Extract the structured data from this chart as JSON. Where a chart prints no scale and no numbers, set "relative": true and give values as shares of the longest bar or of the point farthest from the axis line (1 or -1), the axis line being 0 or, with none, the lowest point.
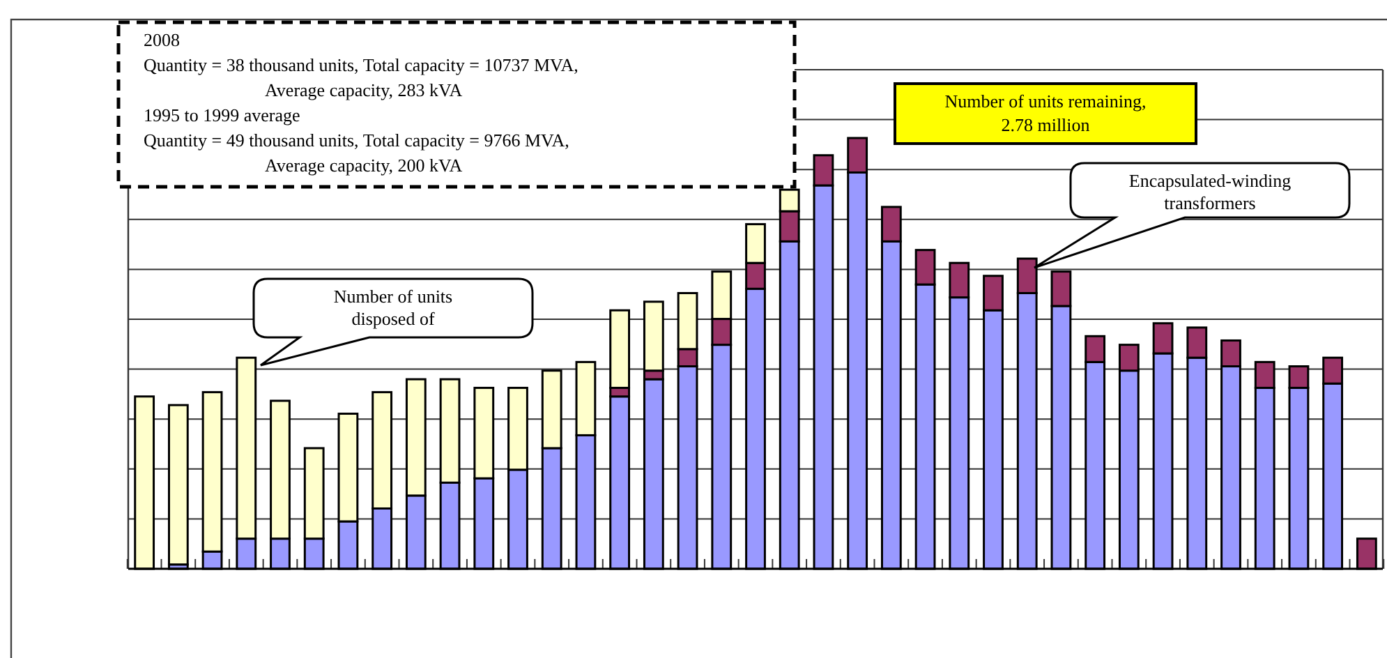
{
  "chart_data": {
    "type": "bar",
    "stacked": true,
    "relative": true,
    "grid": "y",
    "categories": [
      null,
      null,
      null,
      null,
      null,
      null,
      null,
      null,
      null,
      null,
      null,
      null,
      null,
      null,
      null,
      null,
      null,
      null,
      null,
      null,
      null,
      null,
      null,
      null,
      null,
      null,
      null,
      null,
      null,
      null,
      null,
      null,
      null,
      null,
      null,
      null,
      null
    ],
    "series": [
      {
        "color": "#9999ff",
        "values": [
          null,
          0.01,
          0.04,
          0.07,
          0.07,
          0.07,
          0.11,
          0.14,
          0.17,
          0.2,
          0.21,
          0.23,
          0.28,
          0.31,
          0.4,
          0.44,
          0.47,
          0.52,
          0.65,
          0.76,
          0.89,
          0.92,
          0.76,
          0.66,
          0.63,
          0.6,
          0.64,
          0.61,
          0.48,
          0.46,
          0.5,
          0.49,
          0.47,
          0.42,
          0.42,
          0.43,
          null
        ]
      },
      {
        "color": "#993366",
        "values": [
          null,
          null,
          null,
          null,
          null,
          null,
          null,
          null,
          null,
          null,
          null,
          null,
          null,
          null,
          0.02,
          0.02,
          0.04,
          0.06,
          0.06,
          0.07,
          0.07,
          0.08,
          0.08,
          0.08,
          0.08,
          0.08,
          0.08,
          0.08,
          0.06,
          0.06,
          0.07,
          0.07,
          0.06,
          0.06,
          0.05,
          0.06,
          0.07
        ]
      },
      {
        "color": "#ffffcc",
        "values": [
          0.4,
          0.37,
          0.37,
          0.42,
          0.32,
          0.21,
          0.25,
          0.27,
          0.27,
          0.24,
          0.21,
          0.19,
          0.18,
          0.17,
          0.18,
          0.16,
          0.13,
          0.11,
          0.09,
          0.05,
          null,
          null,
          null,
          null,
          null,
          null,
          null,
          null,
          null,
          null,
          null,
          null,
          null,
          null,
          null,
          null,
          null
        ]
      }
    ],
    "annotations": [
      "2008\nQuantity = 38 thousand units, Total capacity = 10737 MVA,\nAverage capacity, 283 kVA\n1995 to 1999 average\nQuantity = 49 thousand units, Total capacity = 9766 MVA,\nAverage capacity, 200 kVA",
      "Number of units remaining,\n2.78 million",
      "Encapsulated-winding\ntransformers",
      "Number of units\ndisposed of"
    ]
  }
}
